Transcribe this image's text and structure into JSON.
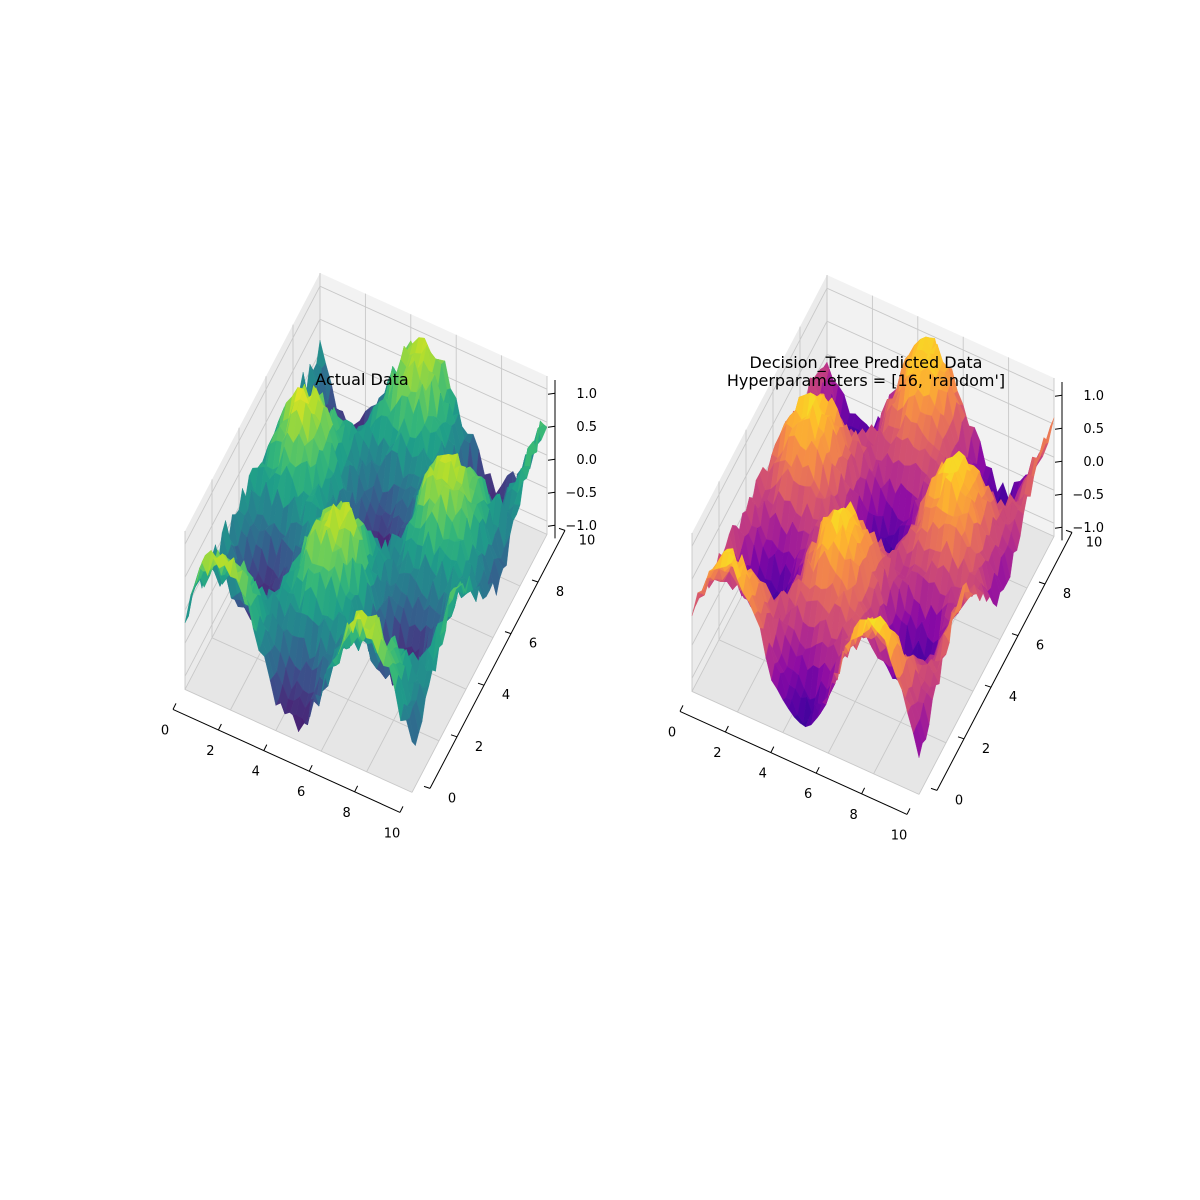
{
  "figure": {
    "background": "#ffffff"
  },
  "chart_data": [
    {
      "type": "surface3d",
      "title_lines": [
        "Actual Data"
      ],
      "colormap": "viridis",
      "surface": "z = sin(x) * cos(y) + noise",
      "x_range": [
        0,
        10
      ],
      "y_range": [
        0,
        10
      ],
      "z_range": [
        -1.2,
        1.2
      ],
      "x_ticks": [
        "0",
        "2",
        "4",
        "6",
        "8",
        "10"
      ],
      "y_ticks": [
        "0",
        "2",
        "4",
        "6",
        "8",
        "10"
      ],
      "z_ticks": [
        "1.0",
        "0.5",
        "0.0",
        "−0.5",
        "−1.0"
      ],
      "z_tick_values": [
        1.0,
        0.5,
        0.0,
        -0.5,
        -1.0
      ],
      "grid": true,
      "noise_amplitude": 0.2
    },
    {
      "type": "surface3d",
      "title_lines": [
        "Decision_Tree Predicted Data",
        "Hyperparameters = [16, 'random']"
      ],
      "colormap": "plasma",
      "surface": "z = sin(x) * cos(y) + noise",
      "x_range": [
        0,
        10
      ],
      "y_range": [
        0,
        10
      ],
      "z_range": [
        -1.2,
        1.2
      ],
      "x_ticks": [
        "0",
        "2",
        "4",
        "6",
        "8",
        "10"
      ],
      "y_ticks": [
        "0",
        "2",
        "4",
        "6",
        "8",
        "10"
      ],
      "z_ticks": [
        "1.0",
        "0.5",
        "0.0",
        "−0.5",
        "−1.0"
      ],
      "z_tick_values": [
        1.0,
        0.5,
        0.0,
        -0.5,
        -1.0
      ],
      "grid": true,
      "noise_amplitude": 0.15
    }
  ]
}
